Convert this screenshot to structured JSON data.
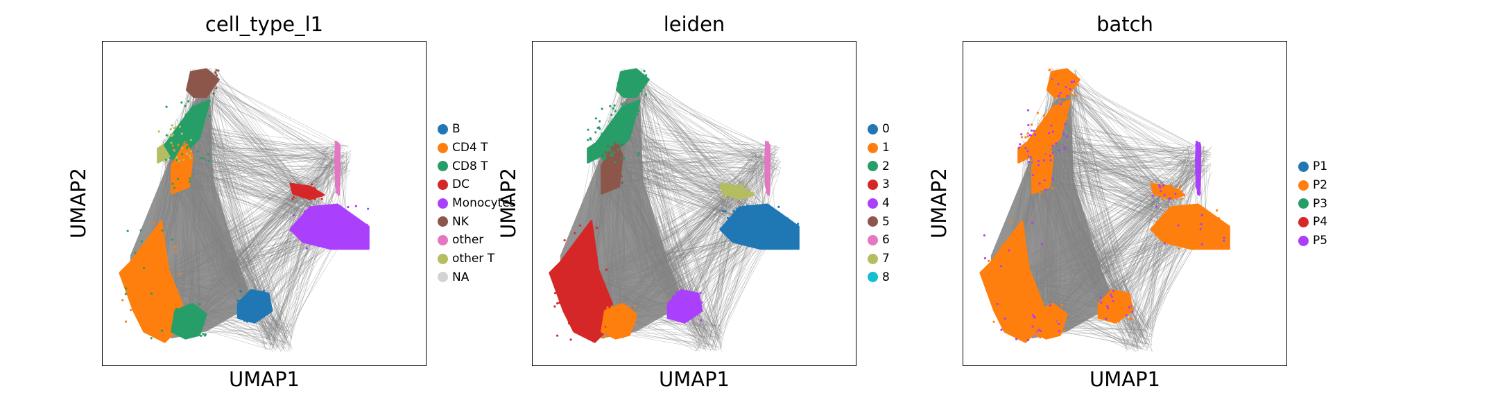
{
  "chart_data": [
    {
      "type": "scatter",
      "title": "cell_type_l1",
      "xlabel": "UMAP1",
      "ylabel": "UMAP2",
      "legend_position": "right",
      "grid": false,
      "series": [
        {
          "name": "B",
          "color": "#1f77b4"
        },
        {
          "name": "CD4 T",
          "color": "#ff7f0e"
        },
        {
          "name": "CD8 T",
          "color": "#279e68"
        },
        {
          "name": "DC",
          "color": "#d62728"
        },
        {
          "name": "Monocytes",
          "color": "#aa40fc"
        },
        {
          "name": "NK",
          "color": "#8c564b"
        },
        {
          "name": "other",
          "color": "#e377c2"
        },
        {
          "name": "other T",
          "color": "#b5bd61"
        },
        {
          "name": "NA",
          "color": "#d3d3d3"
        }
      ]
    },
    {
      "type": "scatter",
      "title": "leiden",
      "xlabel": "UMAP1",
      "ylabel": "UMAP2",
      "legend_position": "right",
      "grid": false,
      "series": [
        {
          "name": "0",
          "color": "#1f77b4"
        },
        {
          "name": "1",
          "color": "#ff7f0e"
        },
        {
          "name": "2",
          "color": "#279e68"
        },
        {
          "name": "3",
          "color": "#d62728"
        },
        {
          "name": "4",
          "color": "#aa40fc"
        },
        {
          "name": "5",
          "color": "#8c564b"
        },
        {
          "name": "6",
          "color": "#e377c2"
        },
        {
          "name": "7",
          "color": "#b5bd61"
        },
        {
          "name": "8",
          "color": "#17becf"
        }
      ]
    },
    {
      "type": "scatter",
      "title": "batch",
      "xlabel": "UMAP1",
      "ylabel": "UMAP2",
      "legend_position": "right",
      "grid": false,
      "series": [
        {
          "name": "P1",
          "color": "#1f77b4"
        },
        {
          "name": "P2",
          "color": "#ff7f0e"
        },
        {
          "name": "P3",
          "color": "#279e68"
        },
        {
          "name": "P4",
          "color": "#d62728"
        },
        {
          "name": "P5",
          "color": "#aa40fc"
        }
      ]
    }
  ],
  "edge_color": "#808080"
}
